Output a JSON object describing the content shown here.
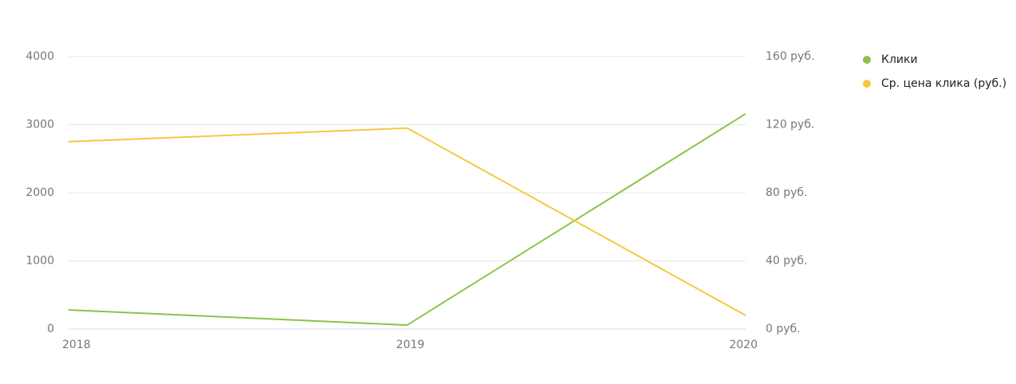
{
  "chart_data": {
    "type": "line",
    "categories": [
      "2018",
      "2019",
      "2020"
    ],
    "series": [
      {
        "name": "Клики",
        "color": "#8bc34a",
        "values": [
          280,
          58,
          3160
        ]
      },
      {
        "name": "Ср. цена клика (руб.)",
        "color": "#f5c842",
        "values": [
          110,
          118,
          8
        ],
        "axis": "y2"
      }
    ],
    "ylim": [
      0,
      4000
    ],
    "yticks": [
      0,
      1000,
      2000,
      3000,
      4000
    ],
    "y2lim": [
      0,
      160
    ],
    "y2ticks": [
      {
        "value": 0,
        "label": "0 руб."
      },
      {
        "value": 40,
        "label": "40 руб."
      },
      {
        "value": 80,
        "label": "80 руб."
      },
      {
        "value": 120,
        "label": "120 руб."
      },
      {
        "value": 160,
        "label": "160 руб."
      }
    ],
    "grid": true,
    "legend": "right"
  }
}
